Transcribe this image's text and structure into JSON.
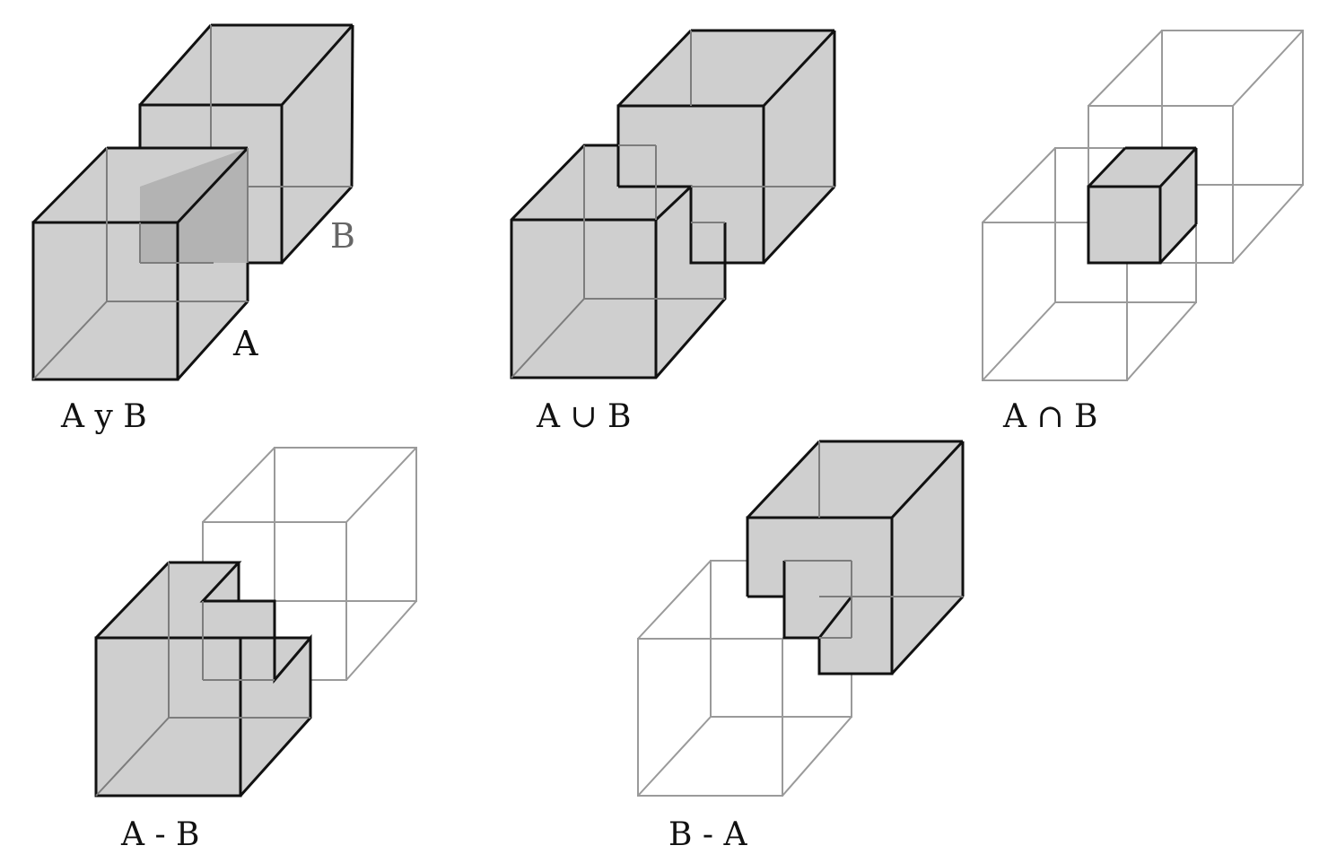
{
  "panels": [
    {
      "id": "a-and-b",
      "caption": "A y B",
      "labels": {
        "a": "A",
        "b": "B"
      }
    },
    {
      "id": "union",
      "caption": "A ∪ B"
    },
    {
      "id": "intersection",
      "caption": "A ∩ B"
    },
    {
      "id": "a-minus-b",
      "caption": "A - B"
    },
    {
      "id": "b-minus-a",
      "caption": "B - A"
    }
  ],
  "colors": {
    "fill": "#cfcfcf",
    "overlap": "#b3b3b3",
    "edge": "#111111",
    "hidden_edge": "#7d7d7d",
    "label_b": "#666666"
  }
}
